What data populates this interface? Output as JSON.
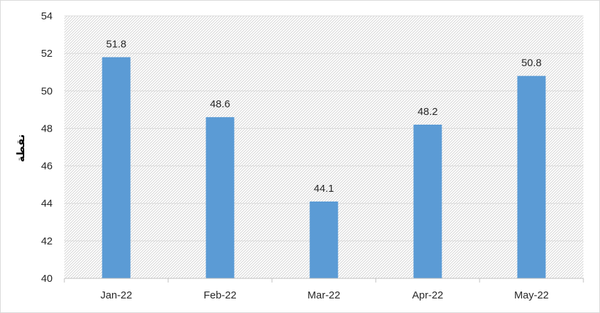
{
  "chart_data": {
    "type": "bar",
    "categories": [
      "Jan-22",
      "Feb-22",
      "Mar-22",
      "Apr-22",
      "May-22"
    ],
    "values": [
      51.8,
      48.6,
      44.1,
      48.2,
      50.8
    ],
    "data_labels": [
      "51.8",
      "48.6",
      "44.1",
      "48.2",
      "50.8"
    ],
    "ylabel": "نقطة",
    "ylim": [
      40,
      54
    ],
    "yticks": [
      "40",
      "42",
      "44",
      "46",
      "48",
      "50",
      "52",
      "54"
    ],
    "grid": true,
    "legend": "none",
    "bar_color": "#5b9bd5",
    "plot_background": "hatched light gray"
  }
}
